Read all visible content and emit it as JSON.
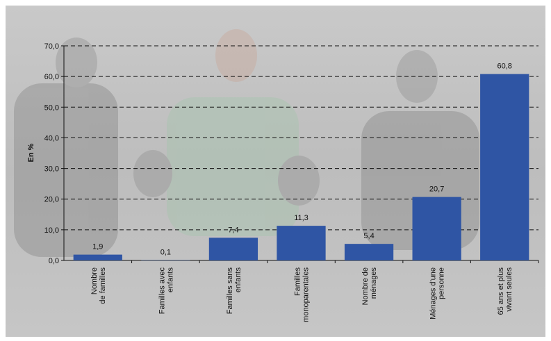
{
  "chart_data": {
    "type": "bar",
    "y_label": "En %",
    "categories": [
      "Nombre\nde familles",
      "Familles avec\nenfants",
      "Familles sans\nenfants",
      "Familles\nmonoparentales",
      "Nombre de\nménages",
      "Ménages d'une\npersonne",
      "65 ans et plus\nvivant seules"
    ],
    "values": [
      1.9,
      0.1,
      7.4,
      11.3,
      5.4,
      20.7,
      60.8
    ],
    "value_labels": [
      "1,9",
      "0,1",
      "7,4",
      "11,3",
      "5,4",
      "20,7",
      "60,8"
    ],
    "color": "#2f55a4",
    "ylim": [
      0,
      70
    ],
    "yticks": [
      {
        "value": 0,
        "label": "0,0"
      },
      {
        "value": 10,
        "label": "10,0"
      },
      {
        "value": 20,
        "label": "20,0"
      },
      {
        "value": 30,
        "label": "30,0"
      },
      {
        "value": 40,
        "label": "40,0"
      },
      {
        "value": 50,
        "label": "50,0"
      },
      {
        "value": 60,
        "label": "60,0"
      },
      {
        "value": 70,
        "label": "70,0"
      }
    ],
    "grid": true
  }
}
